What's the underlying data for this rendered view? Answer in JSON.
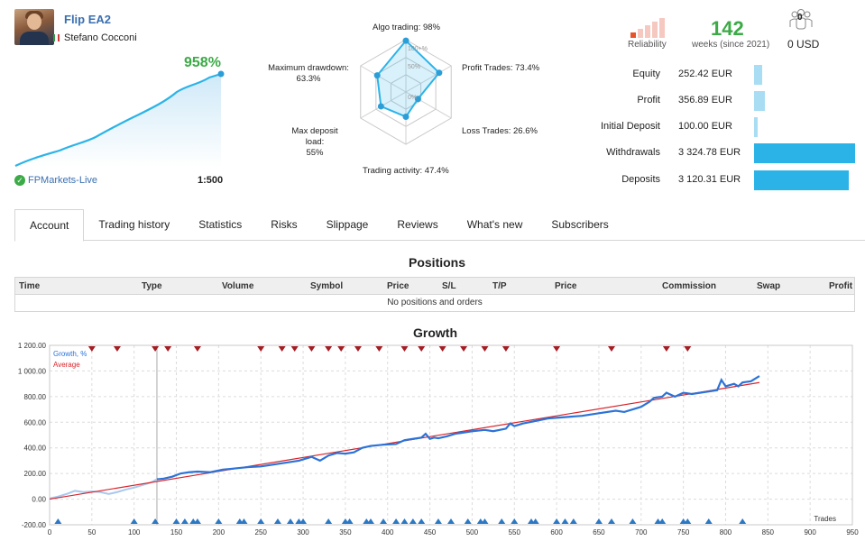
{
  "signal": {
    "title": "Flip EA2",
    "author": "Stefano Cocconi",
    "growth_pct": "958%",
    "broker": "FPMarkets-Live",
    "leverage": "1:500"
  },
  "radar": {
    "labels": {
      "algo": "Algo trading: 98%",
      "profit_trades": "Profit Trades: 73.4%",
      "loss_trades": "Loss Trades: 26.6%",
      "activity": "Trading activity: 47.4%",
      "deposit_load_1": "Max deposit load:",
      "deposit_load_2": "55%",
      "drawdown_1": "Maximum drawdown:",
      "drawdown_2": "63.3%"
    },
    "scale": {
      "top": "100+%",
      "mid": "50%",
      "zero": "0%"
    },
    "values": {
      "algo": 98,
      "profit_trades": 73.4,
      "loss_trades": 26.6,
      "activity": 47.4,
      "deposit_load": 55,
      "drawdown": 63.3
    }
  },
  "reliability": {
    "label": "Reliability",
    "level": 1,
    "max": 5
  },
  "weeks": {
    "value": "142",
    "label": "weeks (since 2021)"
  },
  "subscribers": {
    "count": "0",
    "cost": "0 USD"
  },
  "stats": [
    {
      "label": "Equity",
      "value": "252.42 EUR",
      "fraction": 0.076
    },
    {
      "label": "Profit",
      "value": "356.89 EUR",
      "fraction": 0.107
    },
    {
      "label": "Initial Deposit",
      "value": "100.00 EUR",
      "fraction": 0.03
    },
    {
      "label": "Withdrawals",
      "value": "3 324.78 EUR",
      "fraction": 1.0
    },
    {
      "label": "Deposits",
      "value": "3 120.31 EUR",
      "fraction": 0.939
    }
  ],
  "tabs": [
    "Account",
    "Trading history",
    "Statistics",
    "Risks",
    "Slippage",
    "Reviews",
    "What's new",
    "Subscribers"
  ],
  "positions": {
    "title": "Positions",
    "columns": [
      "Time",
      "Type",
      "Volume",
      "Symbol",
      "Price",
      "S/L",
      "T/P",
      "Price",
      "Commission",
      "Swap",
      "Profit"
    ],
    "empty": "No positions and orders"
  },
  "growth": {
    "title": "Growth",
    "legend_growth": "Growth, %",
    "legend_average": "Average",
    "x_axis_label": "Trades",
    "colors": {
      "growth": "#2b73d8",
      "average": "#d8232a",
      "markers": "#a51c23",
      "bottom_markers": "#2b78c5"
    }
  },
  "chart_data": {
    "type": "line",
    "title": "Growth",
    "xlabel": "Trades",
    "ylabel": "",
    "xlim": [
      0,
      950
    ],
    "ylim": [
      -200,
      1200
    ],
    "x_ticks": [
      0,
      50,
      100,
      150,
      200,
      250,
      300,
      350,
      400,
      450,
      500,
      550,
      600,
      650,
      700,
      750,
      800,
      850,
      900,
      950
    ],
    "y_ticks": [
      -200,
      0,
      200,
      400,
      600,
      800,
      1000,
      1200
    ],
    "y_tick_labels": [
      "-200.00",
      "0.00",
      "200.00",
      "400.00",
      "600.00",
      "800.00",
      "1 000.00",
      "1 200.00"
    ],
    "series": [
      {
        "name": "Growth, %",
        "x": [
          0,
          10,
          20,
          30,
          40,
          50,
          60,
          70,
          80,
          90,
          100,
          110,
          120,
          127,
          135,
          145,
          155,
          165,
          175,
          190,
          205,
          220,
          235,
          250,
          265,
          280,
          295,
          310,
          320,
          330,
          340,
          350,
          360,
          370,
          380,
          395,
          410,
          420,
          430,
          440,
          445,
          450,
          455,
          460,
          470,
          480,
          500,
          515,
          525,
          540,
          545,
          550,
          560,
          575,
          590,
          610,
          630,
          650,
          670,
          680,
          700,
          710,
          715,
          725,
          730,
          740,
          750,
          760,
          780,
          790,
          795,
          800,
          810,
          815,
          820,
          830,
          835,
          840
        ],
        "y": [
          5,
          20,
          40,
          65,
          55,
          60,
          55,
          40,
          55,
          75,
          90,
          110,
          130,
          155,
          160,
          175,
          200,
          210,
          215,
          210,
          230,
          240,
          250,
          255,
          270,
          285,
          300,
          330,
          300,
          340,
          360,
          355,
          365,
          400,
          415,
          425,
          430,
          460,
          470,
          480,
          510,
          470,
          480,
          475,
          490,
          510,
          530,
          540,
          530,
          550,
          590,
          570,
          590,
          610,
          630,
          640,
          650,
          670,
          690,
          680,
          720,
          760,
          790,
          800,
          830,
          800,
          830,
          820,
          840,
          850,
          930,
          880,
          900,
          880,
          910,
          920,
          940,
          960
        ]
      },
      {
        "name": "Average",
        "x": [
          0,
          840
        ],
        "y": [
          0,
          910
        ]
      }
    ],
    "legend": "top-left",
    "grid": true
  }
}
